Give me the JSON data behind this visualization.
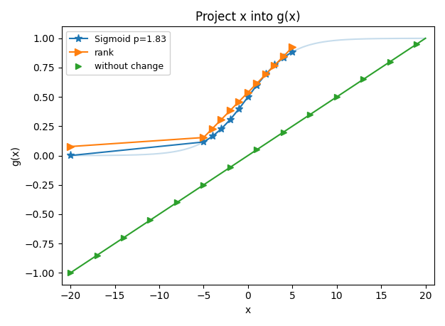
{
  "title": "Project x into g(x)",
  "xlabel": "x",
  "ylabel": "g(x)",
  "xlim": [
    -21,
    21
  ],
  "ylim": [
    -1.1,
    1.1
  ],
  "yticks": [
    -1.0,
    -0.75,
    -0.5,
    -0.25,
    0.0,
    0.25,
    0.5,
    0.75,
    1.0
  ],
  "xticks": [
    -20,
    -15,
    -10,
    -5,
    0,
    5,
    10,
    15,
    20
  ],
  "sigmoid_p": 1.83,
  "sigmoid_color": "#1f77b4",
  "rank_color": "#ff7f0e",
  "linear_color": "#2ca02c",
  "legend_labels": [
    "Sigmoid p=1.83",
    "rank",
    "without change"
  ],
  "title_fontsize": 12,
  "figsize": [
    6.26,
    4.58
  ],
  "dpi": 100,
  "x_samples": [
    -20,
    -5,
    -4,
    -3,
    -2,
    -1,
    0,
    1,
    2,
    3,
    4,
    5
  ],
  "sigmoid_k": 4.5,
  "linear_x_markers": [
    -20,
    -17,
    -14,
    -11,
    -8,
    -5,
    -2,
    1,
    4,
    7,
    10,
    13,
    16,
    19
  ]
}
